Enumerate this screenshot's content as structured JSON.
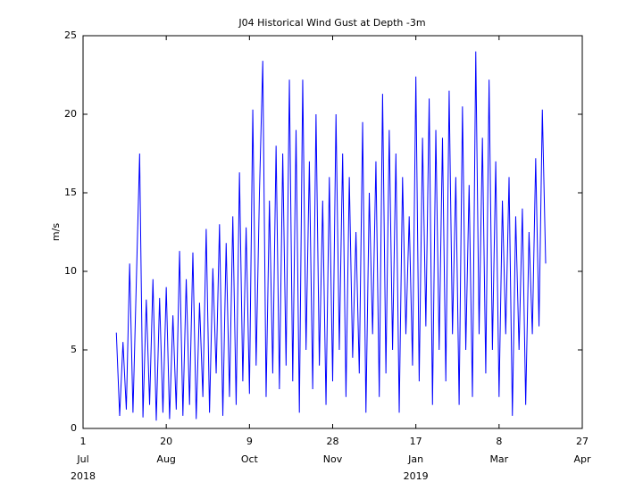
{
  "chart_data": {
    "type": "line",
    "title": "J04 Historical Wind Gust at Depth -3m",
    "y_label": "m/s",
    "xlim": [
      "2018-07-01",
      "2019-04-27"
    ],
    "xticks": [
      {
        "value": "2018-07-01",
        "label": "1",
        "month": "Jul",
        "year": "2018"
      },
      {
        "value": "2018-08-20",
        "label": "20",
        "month": "Aug"
      },
      {
        "value": "2018-10-09",
        "label": "9",
        "month": "Oct"
      },
      {
        "value": "2018-11-28",
        "label": "28",
        "month": "Nov"
      },
      {
        "value": "2019-01-17",
        "label": "17",
        "month": "Jan",
        "year": "2019"
      },
      {
        "value": "2019-03-08",
        "label": "8",
        "month": "Mar"
      },
      {
        "value": "2019-04-27",
        "label": "27",
        "month": "Apr"
      }
    ],
    "ylim": [
      0,
      25
    ],
    "yticks": [
      0,
      5,
      10,
      15,
      20,
      25
    ],
    "series": [
      {
        "color": "#0000ff",
        "x": [
          "2018-07-21",
          "2018-07-23",
          "2018-07-25",
          "2018-07-27",
          "2018-07-29",
          "2018-07-31",
          "2018-08-02",
          "2018-08-04",
          "2018-08-06",
          "2018-08-08",
          "2018-08-10",
          "2018-08-12",
          "2018-08-14",
          "2018-08-16",
          "2018-08-18",
          "2018-08-20",
          "2018-08-22",
          "2018-08-24",
          "2018-08-26",
          "2018-08-28",
          "2018-08-30",
          "2018-09-01",
          "2018-09-03",
          "2018-09-05",
          "2018-09-07",
          "2018-09-09",
          "2018-09-11",
          "2018-09-13",
          "2018-09-15",
          "2018-09-17",
          "2018-09-19",
          "2018-09-21",
          "2018-09-23",
          "2018-09-25",
          "2018-09-27",
          "2018-09-29",
          "2018-10-01",
          "2018-10-03",
          "2018-10-05",
          "2018-10-07",
          "2018-10-09",
          "2018-10-11",
          "2018-10-13",
          "2018-10-15",
          "2018-10-17",
          "2018-10-19",
          "2018-10-21",
          "2018-10-23",
          "2018-10-25",
          "2018-10-27",
          "2018-10-29",
          "2018-10-31",
          "2018-11-02",
          "2018-11-04",
          "2018-11-06",
          "2018-11-08",
          "2018-11-10",
          "2018-11-12",
          "2018-11-14",
          "2018-11-16",
          "2018-11-18",
          "2018-11-20",
          "2018-11-22",
          "2018-11-24",
          "2018-11-26",
          "2018-11-28",
          "2018-11-30",
          "2018-12-02",
          "2018-12-04",
          "2018-12-06",
          "2018-12-08",
          "2018-12-10",
          "2018-12-12",
          "2018-12-14",
          "2018-12-16",
          "2018-12-18",
          "2018-12-20",
          "2018-12-22",
          "2018-12-24",
          "2018-12-26",
          "2018-12-28",
          "2018-12-30",
          "2019-01-01",
          "2019-01-03",
          "2019-01-05",
          "2019-01-07",
          "2019-01-09",
          "2019-01-11",
          "2019-01-13",
          "2019-01-15",
          "2019-01-17",
          "2019-01-19",
          "2019-01-21",
          "2019-01-23",
          "2019-01-25",
          "2019-01-27",
          "2019-01-29",
          "2019-01-31",
          "2019-02-02",
          "2019-02-04",
          "2019-02-06",
          "2019-02-08",
          "2019-02-10",
          "2019-02-12",
          "2019-02-14",
          "2019-02-16",
          "2019-02-18",
          "2019-02-20",
          "2019-02-22",
          "2019-02-24",
          "2019-02-26",
          "2019-02-28",
          "2019-03-02",
          "2019-03-04",
          "2019-03-06",
          "2019-03-08",
          "2019-03-10",
          "2019-03-12",
          "2019-03-14",
          "2019-03-16",
          "2019-03-18",
          "2019-03-20",
          "2019-03-22",
          "2019-03-24",
          "2019-03-26",
          "2019-03-28",
          "2019-03-30",
          "2019-04-01",
          "2019-04-03",
          "2019-04-05"
        ],
        "values": [
          6.1,
          0.8,
          5.5,
          1.2,
          10.5,
          1.0,
          9.3,
          17.5,
          0.7,
          8.2,
          1.5,
          9.5,
          0.5,
          8.3,
          1.0,
          9.0,
          0.6,
          7.2,
          1.2,
          11.3,
          0.8,
          9.5,
          1.5,
          11.2,
          0.6,
          8.0,
          2.0,
          12.7,
          1.0,
          10.2,
          3.5,
          13.0,
          0.8,
          11.8,
          2.0,
          13.5,
          1.5,
          16.3,
          3.0,
          12.8,
          2.2,
          20.3,
          4.0,
          15.0,
          23.4,
          2.0,
          14.5,
          3.5,
          18.0,
          2.5,
          17.5,
          4.0,
          22.2,
          3.0,
          19.0,
          1.0,
          22.2,
          5.0,
          17.0,
          2.5,
          20.0,
          4.0,
          14.5,
          1.5,
          16.0,
          3.0,
          20.0,
          5.0,
          17.5,
          2.0,
          16.0,
          4.5,
          12.5,
          3.5,
          19.5,
          1.0,
          15.0,
          6.0,
          17.0,
          2.0,
          21.3,
          3.5,
          19.0,
          5.0,
          17.5,
          1.0,
          16.0,
          6.0,
          13.5,
          4.0,
          22.4,
          3.0,
          18.5,
          6.5,
          21.0,
          1.5,
          19.0,
          5.0,
          18.5,
          3.0,
          21.5,
          6.0,
          16.0,
          1.5,
          20.5,
          5.0,
          15.5,
          2.0,
          24.0,
          6.0,
          18.5,
          3.5,
          22.2,
          5.0,
          17.0,
          2.0,
          14.5,
          6.0,
          16.0,
          0.8,
          13.5,
          5.0,
          14.0,
          1.5,
          12.5,
          6.0,
          17.2,
          6.5,
          20.3,
          10.5
        ]
      }
    ]
  }
}
